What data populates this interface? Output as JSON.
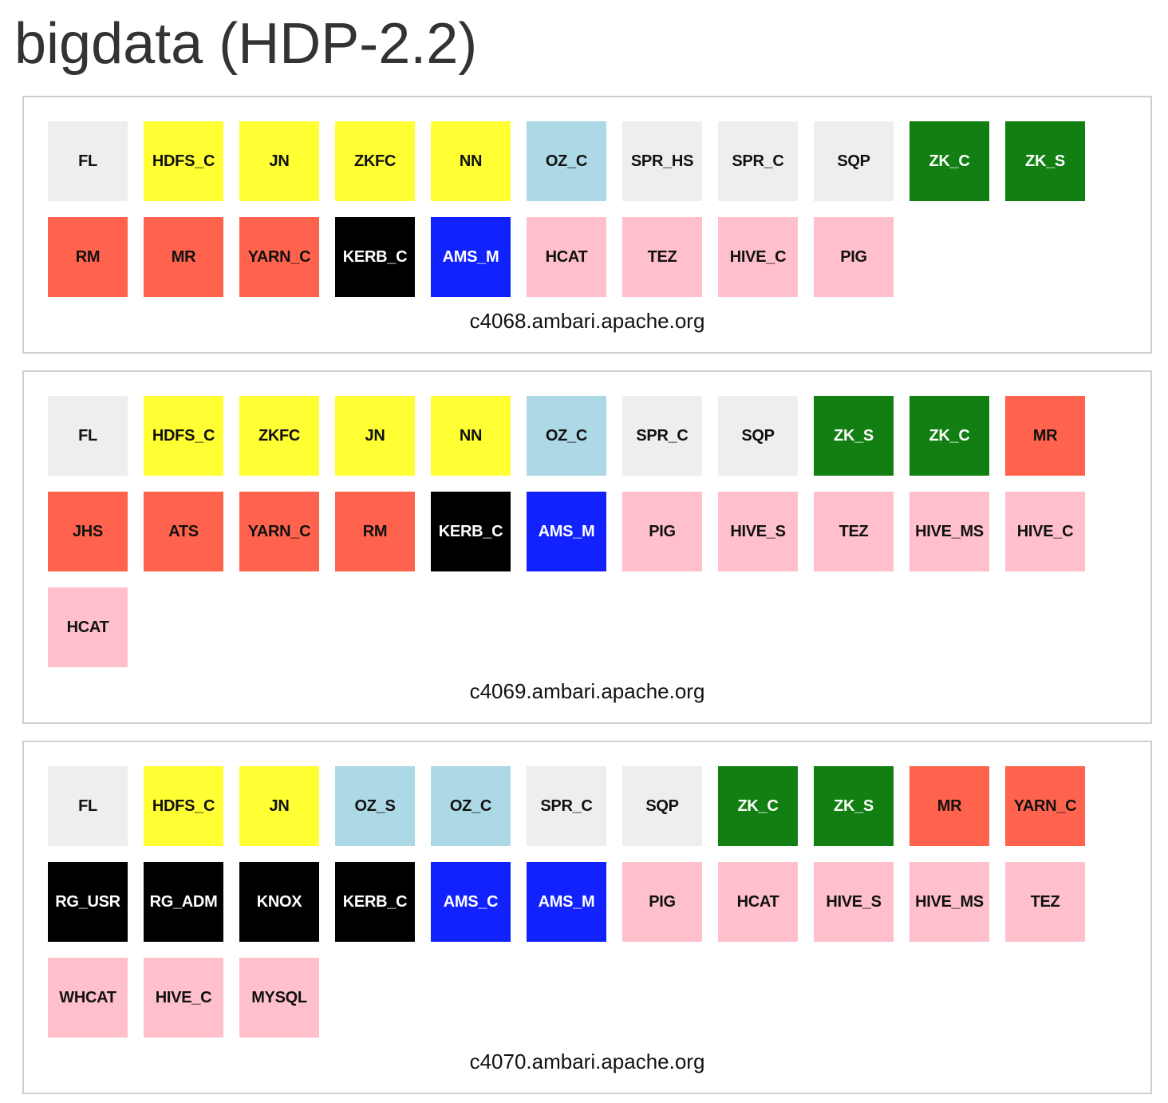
{
  "title": "bigdata (HDP-2.2)",
  "colors": {
    "grey": "#eeeeee",
    "yellow": "#ffff33",
    "lightblue": "#add8e6",
    "green": "#117f11",
    "red": "#ff634d",
    "black": "#000000",
    "blue": "#1122ff",
    "pink": "#ffc0cb"
  },
  "hosts": [
    {
      "name": "c4068.ambari.apache.org",
      "components": [
        {
          "label": "FL",
          "color": "grey"
        },
        {
          "label": "HDFS_C",
          "color": "yellow"
        },
        {
          "label": "JN",
          "color": "yellow"
        },
        {
          "label": "ZKFC",
          "color": "yellow"
        },
        {
          "label": "NN",
          "color": "yellow"
        },
        {
          "label": "OZ_C",
          "color": "lightblue"
        },
        {
          "label": "SPR_HS",
          "color": "grey"
        },
        {
          "label": "SPR_C",
          "color": "grey"
        },
        {
          "label": "SQP",
          "color": "grey"
        },
        {
          "label": "ZK_C",
          "color": "green"
        },
        {
          "label": "ZK_S",
          "color": "green"
        },
        {
          "label": "RM",
          "color": "red"
        },
        {
          "label": "MR",
          "color": "red"
        },
        {
          "label": "YARN_C",
          "color": "red"
        },
        {
          "label": "KERB_C",
          "color": "black"
        },
        {
          "label": "AMS_M",
          "color": "blue"
        },
        {
          "label": "HCAT",
          "color": "pink"
        },
        {
          "label": "TEZ",
          "color": "pink"
        },
        {
          "label": "HIVE_C",
          "color": "pink"
        },
        {
          "label": "PIG",
          "color": "pink"
        }
      ]
    },
    {
      "name": "c4069.ambari.apache.org",
      "components": [
        {
          "label": "FL",
          "color": "grey"
        },
        {
          "label": "HDFS_C",
          "color": "yellow"
        },
        {
          "label": "ZKFC",
          "color": "yellow"
        },
        {
          "label": "JN",
          "color": "yellow"
        },
        {
          "label": "NN",
          "color": "yellow"
        },
        {
          "label": "OZ_C",
          "color": "lightblue"
        },
        {
          "label": "SPR_C",
          "color": "grey"
        },
        {
          "label": "SQP",
          "color": "grey"
        },
        {
          "label": "ZK_S",
          "color": "green"
        },
        {
          "label": "ZK_C",
          "color": "green"
        },
        {
          "label": "MR",
          "color": "red"
        },
        {
          "label": "JHS",
          "color": "red"
        },
        {
          "label": "ATS",
          "color": "red"
        },
        {
          "label": "YARN_C",
          "color": "red"
        },
        {
          "label": "RM",
          "color": "red"
        },
        {
          "label": "KERB_C",
          "color": "black"
        },
        {
          "label": "AMS_M",
          "color": "blue"
        },
        {
          "label": "PIG",
          "color": "pink"
        },
        {
          "label": "HIVE_S",
          "color": "pink"
        },
        {
          "label": "TEZ",
          "color": "pink"
        },
        {
          "label": "HIVE_MS",
          "color": "pink"
        },
        {
          "label": "HIVE_C",
          "color": "pink"
        },
        {
          "label": "HCAT",
          "color": "pink"
        }
      ]
    },
    {
      "name": "c4070.ambari.apache.org",
      "components": [
        {
          "label": "FL",
          "color": "grey"
        },
        {
          "label": "HDFS_C",
          "color": "yellow"
        },
        {
          "label": "JN",
          "color": "yellow"
        },
        {
          "label": "OZ_S",
          "color": "lightblue"
        },
        {
          "label": "OZ_C",
          "color": "lightblue"
        },
        {
          "label": "SPR_C",
          "color": "grey"
        },
        {
          "label": "SQP",
          "color": "grey"
        },
        {
          "label": "ZK_C",
          "color": "green"
        },
        {
          "label": "ZK_S",
          "color": "green"
        },
        {
          "label": "MR",
          "color": "red"
        },
        {
          "label": "YARN_C",
          "color": "red"
        },
        {
          "label": "RG_USR",
          "color": "black"
        },
        {
          "label": "RG_ADM",
          "color": "black"
        },
        {
          "label": "KNOX",
          "color": "black"
        },
        {
          "label": "KERB_C",
          "color": "black"
        },
        {
          "label": "AMS_C",
          "color": "blue"
        },
        {
          "label": "AMS_M",
          "color": "blue"
        },
        {
          "label": "PIG",
          "color": "pink"
        },
        {
          "label": "HCAT",
          "color": "pink"
        },
        {
          "label": "HIVE_S",
          "color": "pink"
        },
        {
          "label": "HIVE_MS",
          "color": "pink"
        },
        {
          "label": "TEZ",
          "color": "pink"
        },
        {
          "label": "WHCAT",
          "color": "pink"
        },
        {
          "label": "HIVE_C",
          "color": "pink"
        },
        {
          "label": "MYSQL",
          "color": "pink"
        }
      ]
    }
  ]
}
